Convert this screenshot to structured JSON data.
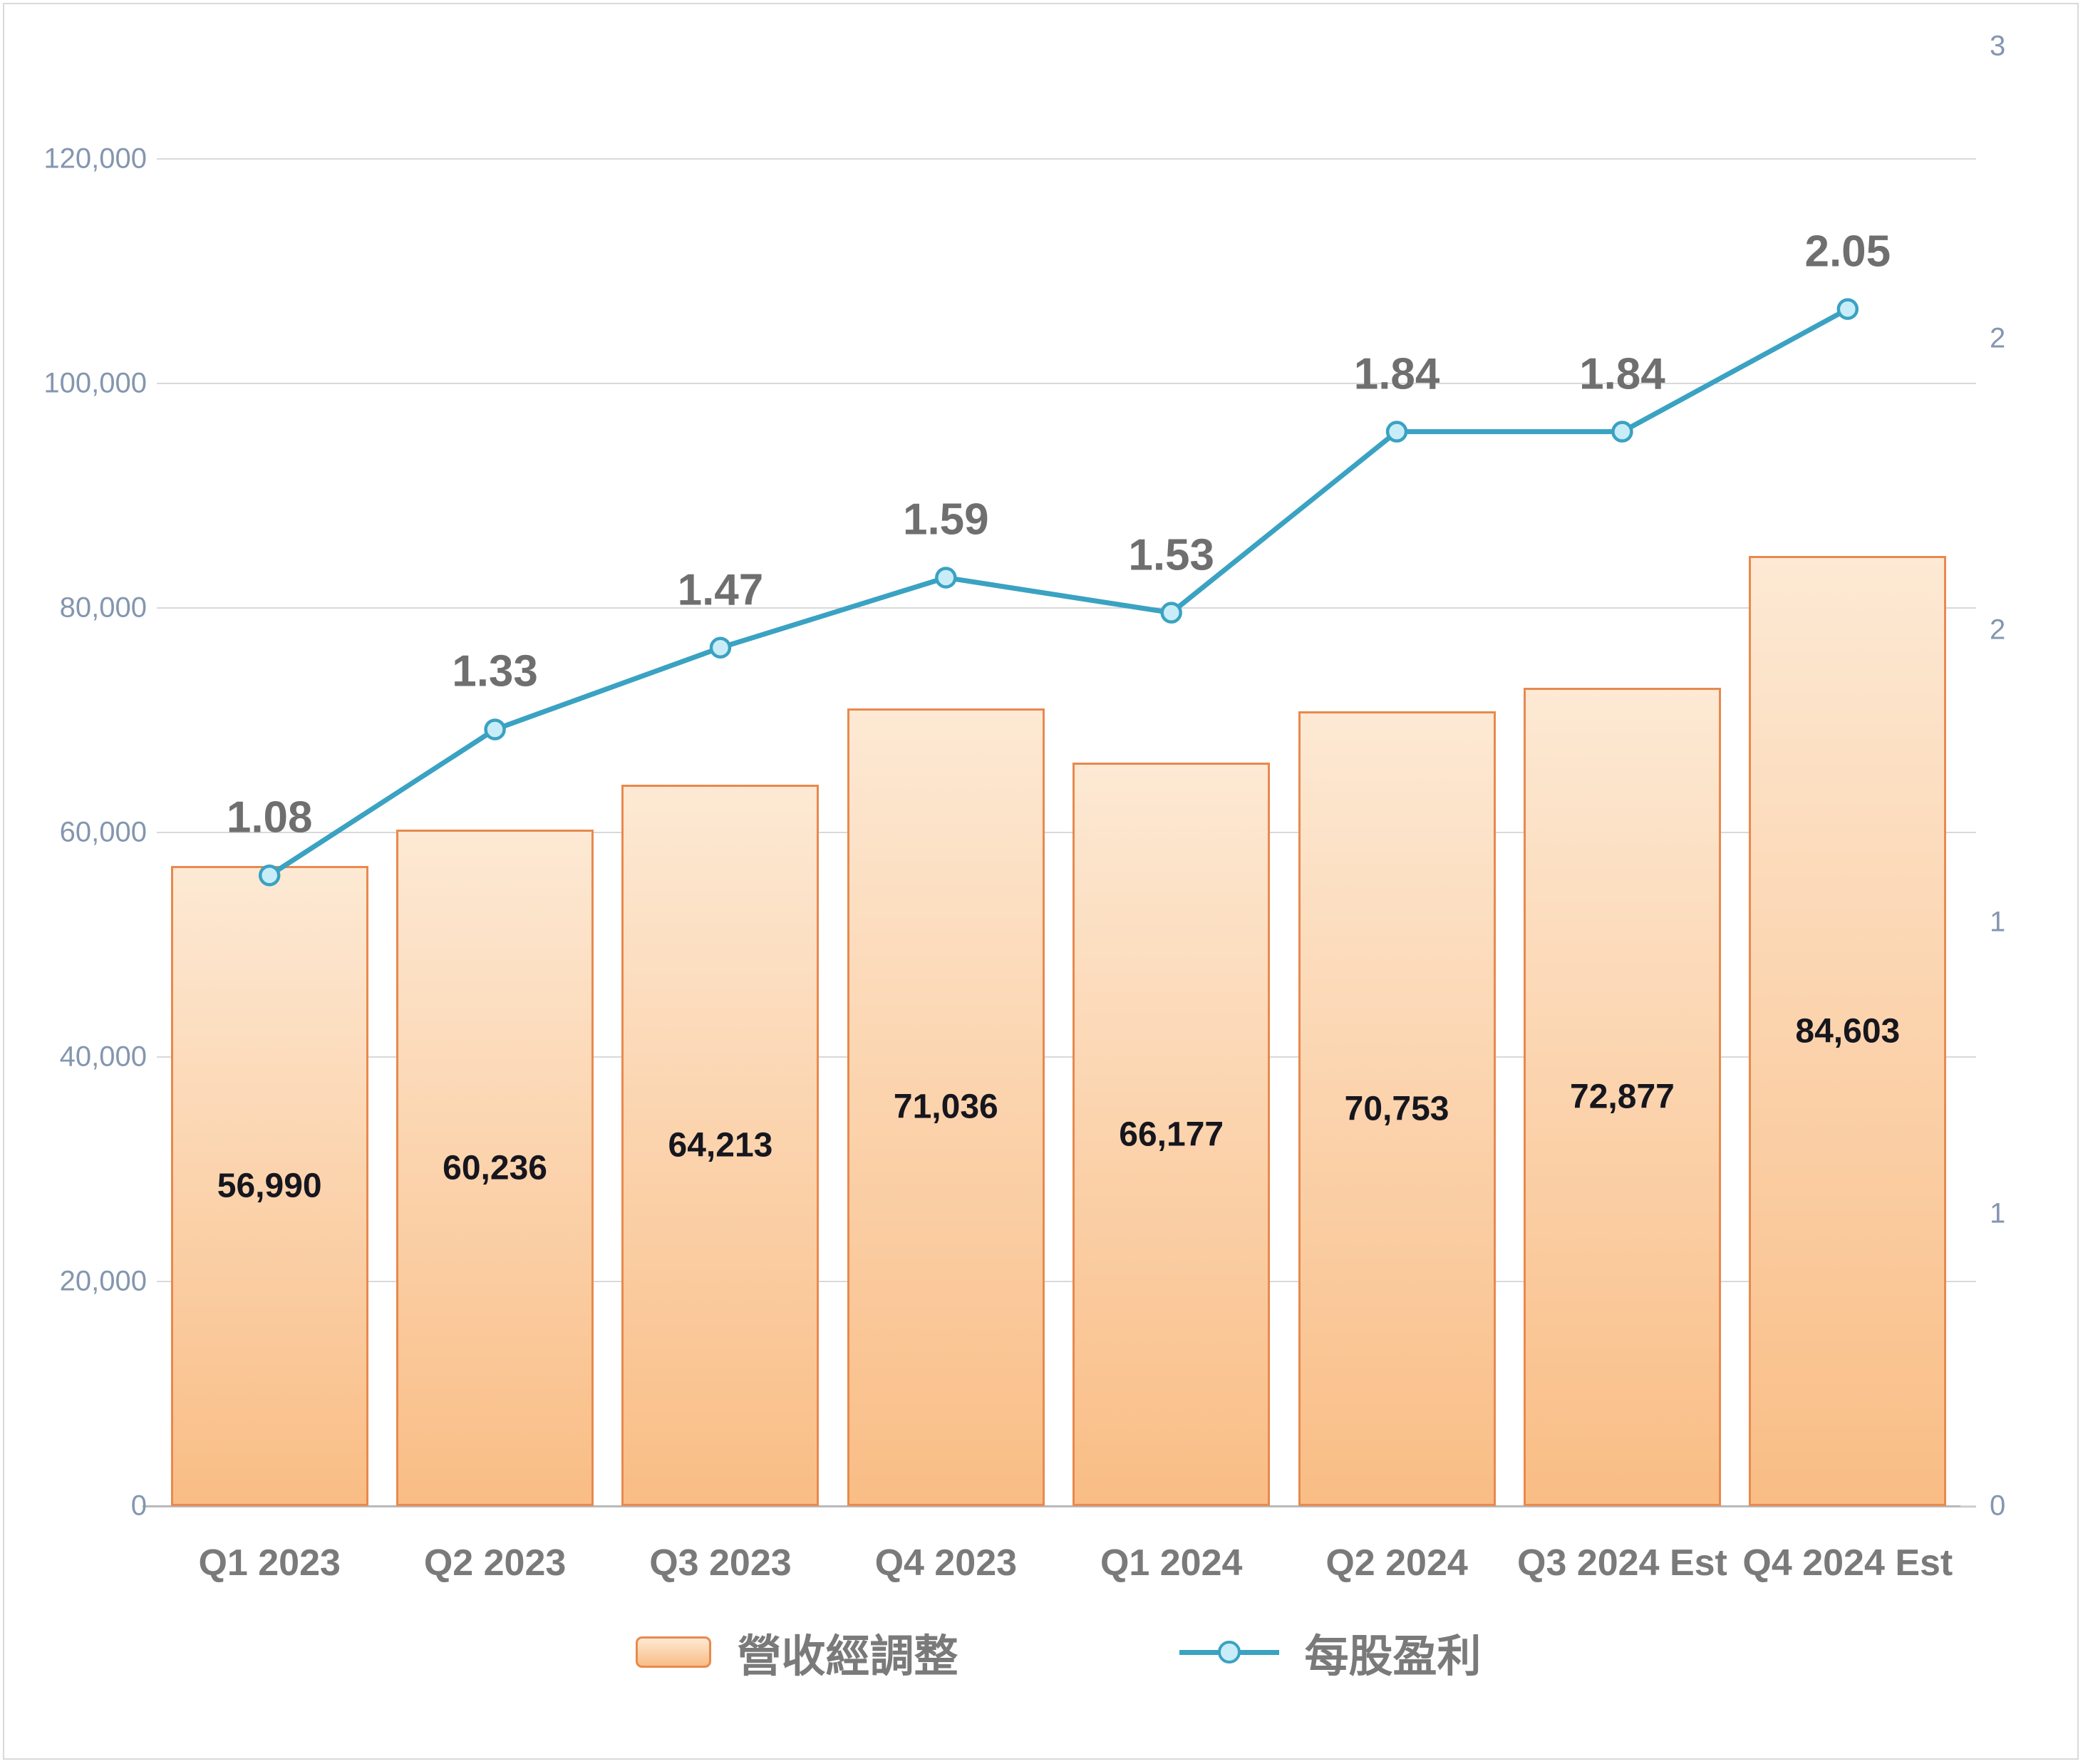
{
  "chart_data": {
    "type": "combo",
    "title": "",
    "categories": [
      "Q1 2023",
      "Q2 2023",
      "Q3 2023",
      "Q4 2023",
      "Q1 2024",
      "Q2 2024",
      "Q3 2024 Est",
      "Q4 2024 Est"
    ],
    "series": [
      {
        "name": "營收經調整",
        "type": "bar",
        "axis": "left",
        "values": [
          56990,
          60236,
          64213,
          71036,
          66177,
          70753,
          72877,
          84603
        ],
        "labels": [
          "56,990",
          "60,236",
          "64,213",
          "71,036",
          "66,177",
          "70,753",
          "72,877",
          "84,603"
        ]
      },
      {
        "name": "每股盈利",
        "type": "line",
        "axis": "right",
        "values": [
          1.08,
          1.33,
          1.47,
          1.59,
          1.53,
          1.84,
          1.84,
          2.05
        ],
        "labels": [
          "1.08",
          "1.33",
          "1.47",
          "1.59",
          "1.53",
          "1.84",
          "1.84",
          "2.05"
        ]
      }
    ],
    "left_axis": {
      "range": [
        0,
        130000
      ],
      "gridlines": true,
      "ticks": [
        {
          "label": "120,000",
          "value": 120000
        },
        {
          "label": "100,000",
          "value": 100000
        },
        {
          "label": "80,000",
          "value": 80000
        },
        {
          "label": "60,000",
          "value": 60000
        },
        {
          "label": "40,000",
          "value": 40000
        },
        {
          "label": "20,000",
          "value": 20000
        },
        {
          "label": "0",
          "value": 0
        }
      ]
    },
    "right_axis": {
      "range": [
        0,
        2.5
      ],
      "ticks": [
        {
          "label": "3",
          "value": 2.5
        },
        {
          "label": "2",
          "value": 2.0
        },
        {
          "label": "2",
          "value": 1.5
        },
        {
          "label": "1",
          "value": 1.0
        },
        {
          "label": "1",
          "value": 0.5
        },
        {
          "label": "0",
          "value": 0.0
        }
      ]
    },
    "legend_position": "bottom"
  },
  "legend": {
    "items": [
      {
        "label": "營收經調整",
        "marker": "bar-swatch"
      },
      {
        "label": "每股盈利",
        "marker": "line-marker"
      }
    ]
  },
  "colors": {
    "background": "#FFFFFF",
    "chart_border": "#D9D9D9",
    "gridline": "#D9D9D9",
    "axis_line": "#B9B9B9",
    "bar_fill_top": "#FDE9D4",
    "bar_fill_bottom": "#F9BD85",
    "bar_border": "#E8894E",
    "line": "#3AA2C2",
    "marker_fill": "#C9EDF8",
    "axis_label": "#8496B0",
    "bar_label": "#16161E",
    "eps_label": "#6F6F6F",
    "category_label": "#7A7A7A",
    "legend_label": "#7A7A7A"
  }
}
